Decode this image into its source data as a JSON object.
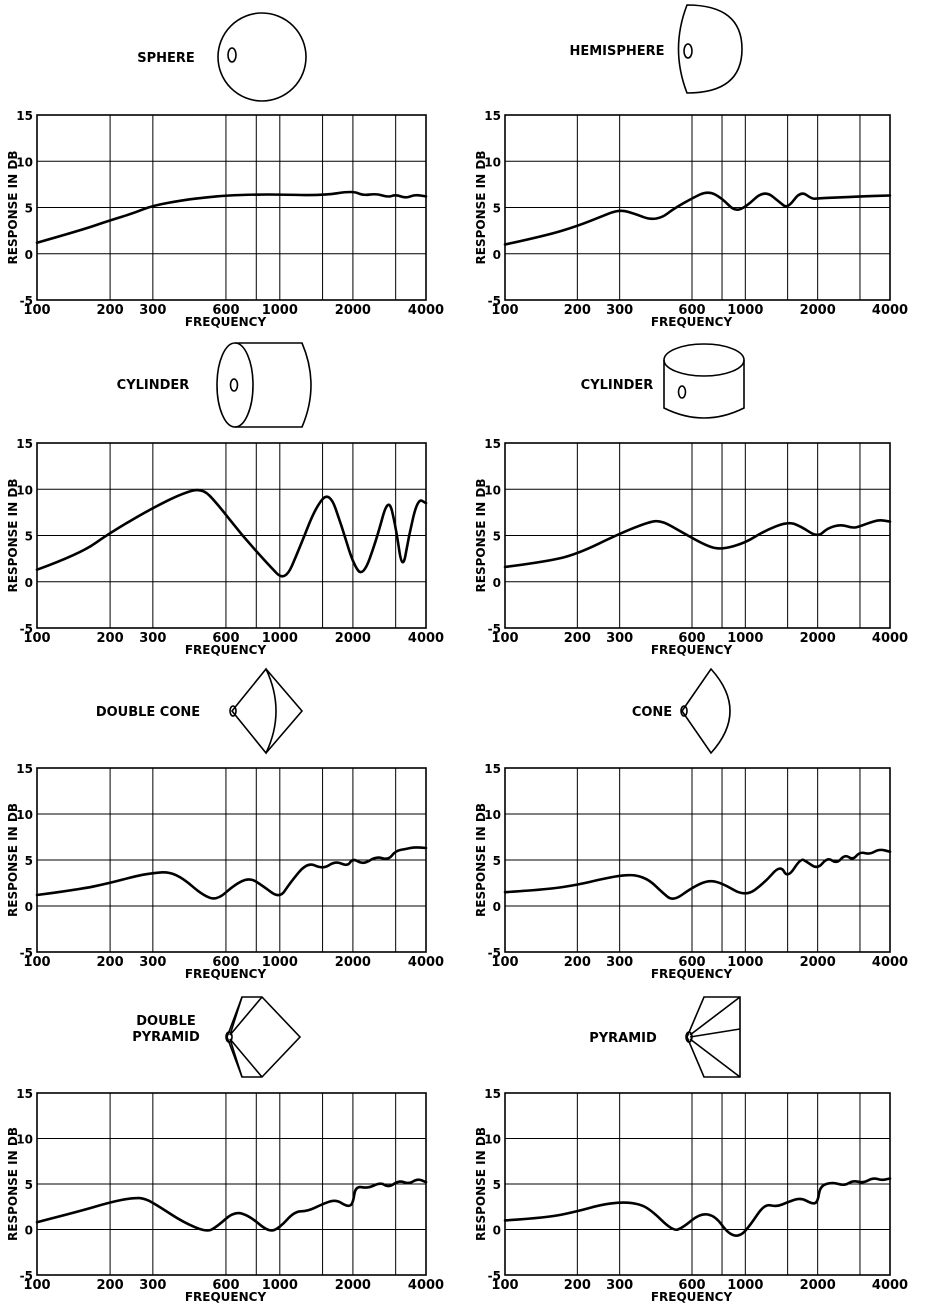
{
  "chart_data": [
    {
      "type": "line",
      "shape": "SPHERE",
      "xlabel": "FREQUENCY",
      "ylabel": "RESPONSE IN DB",
      "xscale": "log",
      "xlim": [
        100,
        4000
      ],
      "ylim": [
        -5,
        15
      ],
      "x_ticks": [
        "100",
        "200",
        "300",
        "600",
        "1000",
        "2000",
        "4000"
      ],
      "y_ticks": [
        "15",
        "10",
        "5",
        "0",
        "-5"
      ],
      "grid": true,
      "series": [
        {
          "x": [
            100,
            150,
            200,
            250,
            300,
            400,
            500,
            600,
            800,
            1000,
            1500,
            2000,
            2200,
            2500,
            2800,
            3000,
            3300,
            3600,
            4000
          ],
          "y": [
            1.2,
            2.5,
            3.6,
            4.4,
            5.2,
            5.8,
            6.1,
            6.3,
            6.4,
            6.4,
            6.3,
            6.8,
            6.3,
            6.5,
            6.1,
            6.4,
            6.0,
            6.4,
            6.2
          ]
        }
      ]
    },
    {
      "type": "line",
      "shape": "HEMISPHERE",
      "xlabel": "FREQUENCY",
      "ylabel": "RESPONSE IN DB",
      "xscale": "log",
      "xlim": [
        100,
        4000
      ],
      "ylim": [
        -5,
        15
      ],
      "x_ticks": [
        "100",
        "200",
        "300",
        "600",
        "1000",
        "2000",
        "4000"
      ],
      "y_ticks": [
        "15",
        "10",
        "5",
        "0",
        "-5"
      ],
      "grid": true,
      "series": [
        {
          "x": [
            100,
            150,
            200,
            250,
            300,
            350,
            400,
            450,
            500,
            600,
            700,
            800,
            900,
            1000,
            1200,
            1400,
            1500,
            1700,
            1900,
            2000,
            2500,
            3000,
            4000
          ],
          "y": [
            1.0,
            2.0,
            3.0,
            4.0,
            4.8,
            4.3,
            3.7,
            3.9,
            4.8,
            6.0,
            6.8,
            6.0,
            4.6,
            5.0,
            6.9,
            5.5,
            4.9,
            6.8,
            5.9,
            6.0,
            6.1,
            6.2,
            6.3
          ]
        }
      ]
    },
    {
      "type": "line",
      "shape": "CYLINDER",
      "xlabel": "FREQUENCY",
      "ylabel": "RESPONSE IN DB",
      "xscale": "log",
      "xlim": [
        100,
        4000
      ],
      "ylim": [
        -5,
        15
      ],
      "x_ticks": [
        "100",
        "200",
        "300",
        "600",
        "1000",
        "2000",
        "4000"
      ],
      "y_ticks": [
        "15",
        "10",
        "5",
        "0",
        "-5"
      ],
      "grid": true,
      "series": [
        {
          "x": [
            100,
            150,
            200,
            300,
            400,
            480,
            550,
            700,
            900,
            1050,
            1200,
            1400,
            1600,
            1800,
            2000,
            2200,
            2500,
            2800,
            3000,
            3200,
            3400,
            3700,
            4000
          ],
          "y": [
            1.3,
            3.0,
            5.3,
            8.0,
            9.6,
            10.1,
            8.5,
            5.0,
            1.8,
            0.0,
            3.5,
            8.0,
            9.8,
            6.0,
            2.0,
            0.5,
            4.5,
            9.3,
            6.0,
            1.0,
            5.0,
            9.0,
            8.5
          ]
        }
      ]
    },
    {
      "type": "line",
      "shape": "CYLINDER",
      "xlabel": "FREQUENCY",
      "ylabel": "RESPONSE IN DB",
      "xscale": "log",
      "xlim": [
        100,
        4000
      ],
      "ylim": [
        -5,
        15
      ],
      "x_ticks": [
        "100",
        "200",
        "300",
        "600",
        "1000",
        "2000",
        "4000"
      ],
      "y_ticks": [
        "15",
        "10",
        "5",
        "0",
        "-5"
      ],
      "grid": true,
      "series": [
        {
          "x": [
            100,
            150,
            200,
            300,
            400,
            450,
            550,
            700,
            800,
            1000,
            1200,
            1500,
            1700,
            2000,
            2200,
            2500,
            2800,
            3000,
            3300,
            3600,
            4000
          ],
          "y": [
            1.6,
            2.2,
            3.0,
            5.2,
            6.5,
            6.6,
            5.3,
            3.8,
            3.5,
            4.2,
            5.5,
            6.5,
            6.0,
            4.8,
            5.8,
            6.2,
            5.8,
            6.0,
            6.4,
            6.7,
            6.5
          ]
        }
      ]
    },
    {
      "type": "line",
      "shape": "DOUBLE CONE",
      "xlabel": "FREQUENCY",
      "ylabel": "RESPONSE IN DB",
      "xscale": "log",
      "xlim": [
        100,
        4000
      ],
      "ylim": [
        -5,
        15
      ],
      "x_ticks": [
        "100",
        "200",
        "300",
        "600",
        "1000",
        "2000",
        "4000"
      ],
      "y_ticks": [
        "15",
        "10",
        "5",
        "0",
        "-5"
      ],
      "grid": true,
      "series": [
        {
          "x": [
            100,
            150,
            200,
            250,
            300,
            350,
            400,
            480,
            550,
            650,
            750,
            850,
            1000,
            1100,
            1300,
            1500,
            1700,
            1900,
            2000,
            2200,
            2500,
            2800,
            3000,
            3300,
            3600,
            4000
          ],
          "y": [
            1.2,
            1.8,
            2.5,
            3.2,
            3.6,
            3.7,
            3.0,
            1.2,
            0.6,
            2.3,
            3.1,
            2.2,
            0.8,
            2.5,
            4.8,
            4.0,
            4.9,
            4.3,
            5.2,
            4.5,
            5.4,
            5.0,
            6.0,
            6.2,
            6.4,
            6.3
          ]
        }
      ]
    },
    {
      "type": "line",
      "shape": "CONE",
      "xlabel": "FREQUENCY",
      "ylabel": "RESPONSE IN DB",
      "xscale": "log",
      "xlim": [
        100,
        4000
      ],
      "ylim": [
        -5,
        15
      ],
      "x_ticks": [
        "100",
        "200",
        "300",
        "600",
        "1000",
        "2000",
        "4000"
      ],
      "y_ticks": [
        "15",
        "10",
        "5",
        "0",
        "-5"
      ],
      "grid": true,
      "series": [
        {
          "x": [
            100,
            150,
            200,
            250,
            300,
            350,
            400,
            450,
            500,
            600,
            700,
            800,
            1000,
            1200,
            1400,
            1500,
            1700,
            1800,
            2000,
            2200,
            2400,
            2600,
            2800,
            3000,
            3300,
            3600,
            4000
          ],
          "y": [
            1.5,
            1.8,
            2.3,
            2.9,
            3.3,
            3.4,
            2.8,
            1.5,
            0.5,
            2.0,
            2.8,
            2.5,
            1.0,
            2.5,
            4.5,
            3.0,
            5.2,
            4.8,
            4.0,
            5.3,
            4.6,
            5.6,
            5.0,
            5.9,
            5.6,
            6.2,
            5.9
          ]
        }
      ]
    },
    {
      "type": "line",
      "shape": "DOUBLE PYRAMID",
      "xlabel": "FREQUENCY",
      "ylabel": "RESPONSE IN DB",
      "xscale": "log",
      "xlim": [
        100,
        4000
      ],
      "ylim": [
        -5,
        15
      ],
      "x_ticks": [
        "100",
        "200",
        "300",
        "600",
        "1000",
        "2000",
        "4000"
      ],
      "y_ticks": [
        "15",
        "10",
        "5",
        "0",
        "-5"
      ],
      "grid": true,
      "series": [
        {
          "x": [
            100,
            150,
            200,
            250,
            280,
            320,
            400,
            500,
            550,
            650,
            750,
            900,
            1000,
            1150,
            1300,
            1500,
            1700,
            1900,
            2000,
            2050,
            2300,
            2600,
            2800,
            3100,
            3400,
            3700,
            4000
          ],
          "y": [
            0.8,
            2.0,
            3.0,
            3.5,
            3.4,
            2.5,
            0.8,
            -0.3,
            0.3,
            2.0,
            1.5,
            -0.3,
            0.2,
            2.0,
            2.0,
            2.8,
            3.3,
            2.5,
            2.8,
            4.8,
            4.5,
            5.2,
            4.6,
            5.4,
            5.0,
            5.6,
            5.2
          ]
        }
      ]
    },
    {
      "type": "line",
      "shape": "PYRAMID",
      "xlabel": "FREQUENCY",
      "ylabel": "RESPONSE IN DB",
      "xscale": "log",
      "xlim": [
        100,
        4000
      ],
      "ylim": [
        -5,
        15
      ],
      "x_ticks": [
        "100",
        "200",
        "300",
        "600",
        "1000",
        "2000",
        "4000"
      ],
      "y_ticks": [
        "15",
        "10",
        "5",
        "0",
        "-5"
      ],
      "grid": true,
      "series": [
        {
          "x": [
            100,
            150,
            200,
            250,
            300,
            350,
            400,
            500,
            550,
            650,
            750,
            850,
            950,
            1050,
            1200,
            1350,
            1500,
            1700,
            1900,
            2000,
            2050,
            2300,
            2600,
            2800,
            3100,
            3400,
            3700,
            4000
          ],
          "y": [
            1.0,
            1.3,
            2.0,
            2.7,
            3.0,
            2.9,
            2.3,
            -0.2,
            0.2,
            1.8,
            1.5,
            -0.5,
            -0.8,
            0.5,
            2.8,
            2.5,
            3.0,
            3.5,
            2.8,
            3.0,
            4.8,
            5.2,
            4.8,
            5.4,
            5.1,
            5.7,
            5.4,
            5.6
          ]
        }
      ]
    }
  ]
}
